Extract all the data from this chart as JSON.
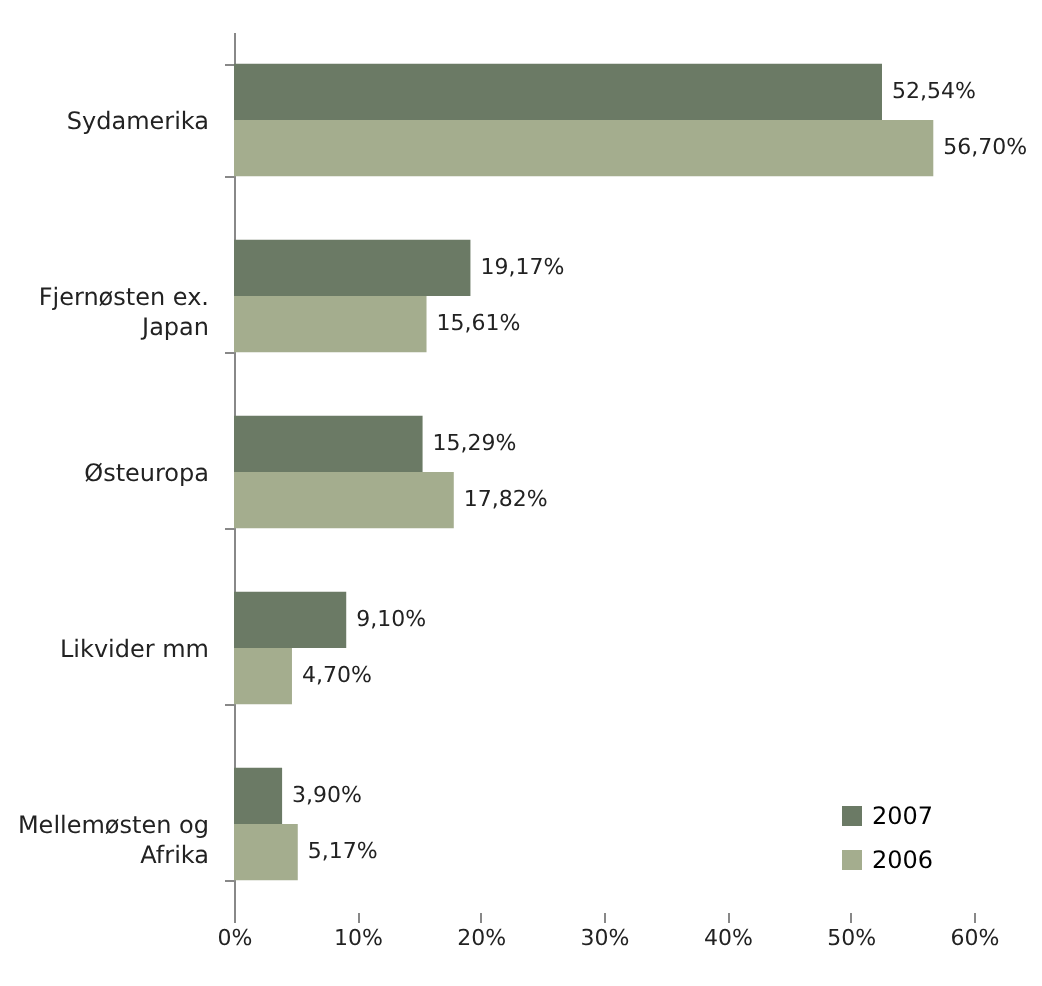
{
  "chart_data": {
    "type": "bar",
    "orientation": "horizontal",
    "categories": [
      "Sydamerika",
      "Fjernøsten ex.\nJapan",
      "Østeuropa",
      "Likvider mm",
      "Mellemøsten og\nAfrika"
    ],
    "series": [
      {
        "name": "2007",
        "color": "#6b7a65",
        "values": [
          52.54,
          19.17,
          15.29,
          9.1,
          3.9
        ],
        "value_labels": [
          "52,54%",
          "19,17%",
          "15,29%",
          "9,10%",
          "3,90%"
        ]
      },
      {
        "name": "2006",
        "color": "#a4ad8e",
        "values": [
          56.7,
          15.61,
          17.82,
          4.7,
          5.17
        ],
        "value_labels": [
          "56,70%",
          "15,61%",
          "17,82%",
          "4,70%",
          "5,17%"
        ]
      }
    ],
    "xlim": [
      0,
      60
    ],
    "xticks": [
      {
        "value": 0,
        "label": "0%"
      },
      {
        "value": 10,
        "label": "10%"
      },
      {
        "value": 20,
        "label": "20%"
      },
      {
        "value": 30,
        "label": "30%"
      },
      {
        "value": 40,
        "label": "40%"
      },
      {
        "value": 50,
        "label": "50%"
      },
      {
        "value": 60,
        "label": "60%"
      }
    ],
    "grid": false,
    "legend": "bottom right"
  }
}
